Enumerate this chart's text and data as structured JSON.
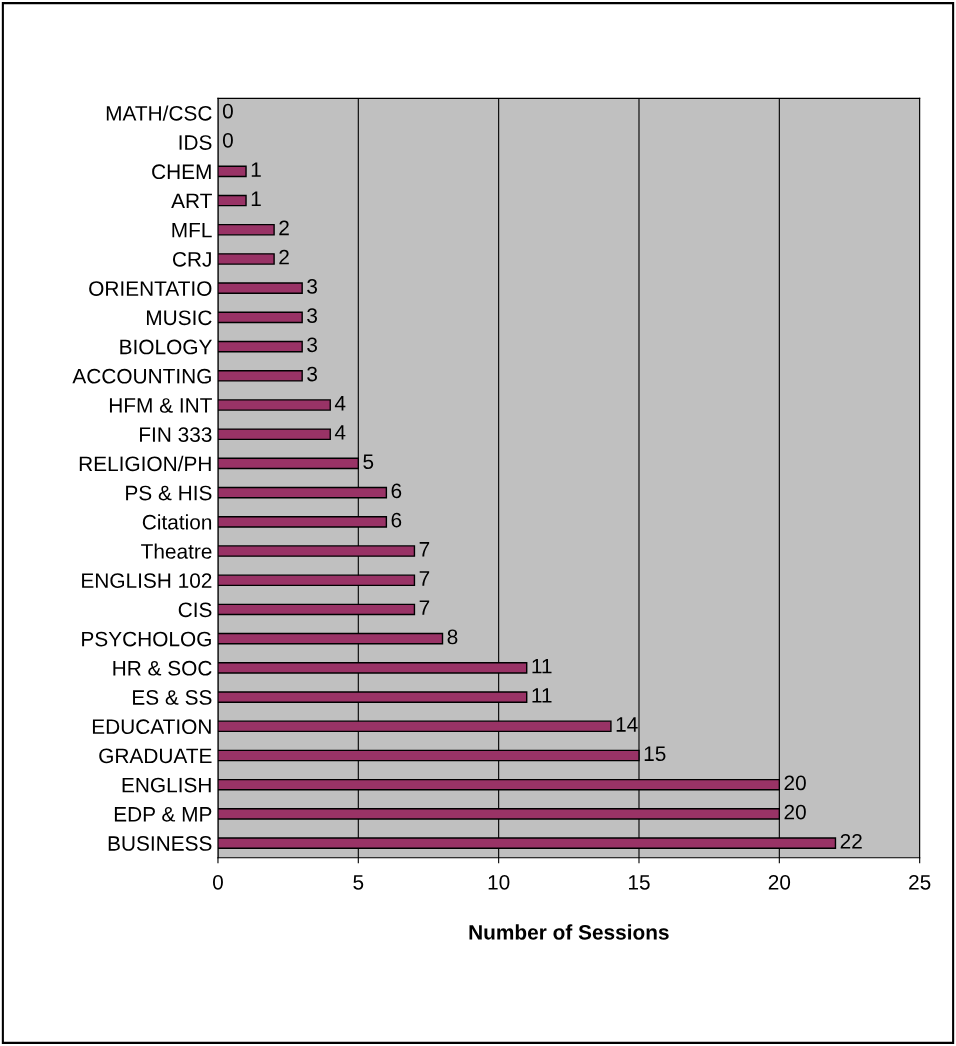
{
  "chart_data": {
    "type": "bar",
    "orientation": "horizontal",
    "xlabel": "Number of Sessions",
    "categories": [
      "MATH/CSC",
      "IDS",
      "CHEM",
      "ART",
      "MFL",
      "CRJ",
      "ORIENTATIO",
      "MUSIC",
      "BIOLOGY",
      "ACCOUNTING",
      "HFM & INT",
      "FIN 333",
      "RELIGION/PH",
      "PS & HIS",
      "Citation",
      "Theatre",
      "ENGLISH 102",
      "CIS",
      "PSYCHOLOG",
      "HR & SOC",
      "ES & SS",
      "EDUCATION",
      "GRADUATE",
      "ENGLISH",
      "EDP & MP",
      "BUSINESS"
    ],
    "values": [
      0,
      0,
      1,
      1,
      2,
      2,
      3,
      3,
      3,
      3,
      4,
      4,
      5,
      6,
      6,
      7,
      7,
      7,
      8,
      11,
      11,
      14,
      15,
      20,
      20,
      22
    ],
    "color": "#993366",
    "xlim": [
      0,
      25
    ],
    "xticks": [
      0,
      5,
      10,
      15,
      20,
      25
    ],
    "grid": "x",
    "data_labels": true
  }
}
